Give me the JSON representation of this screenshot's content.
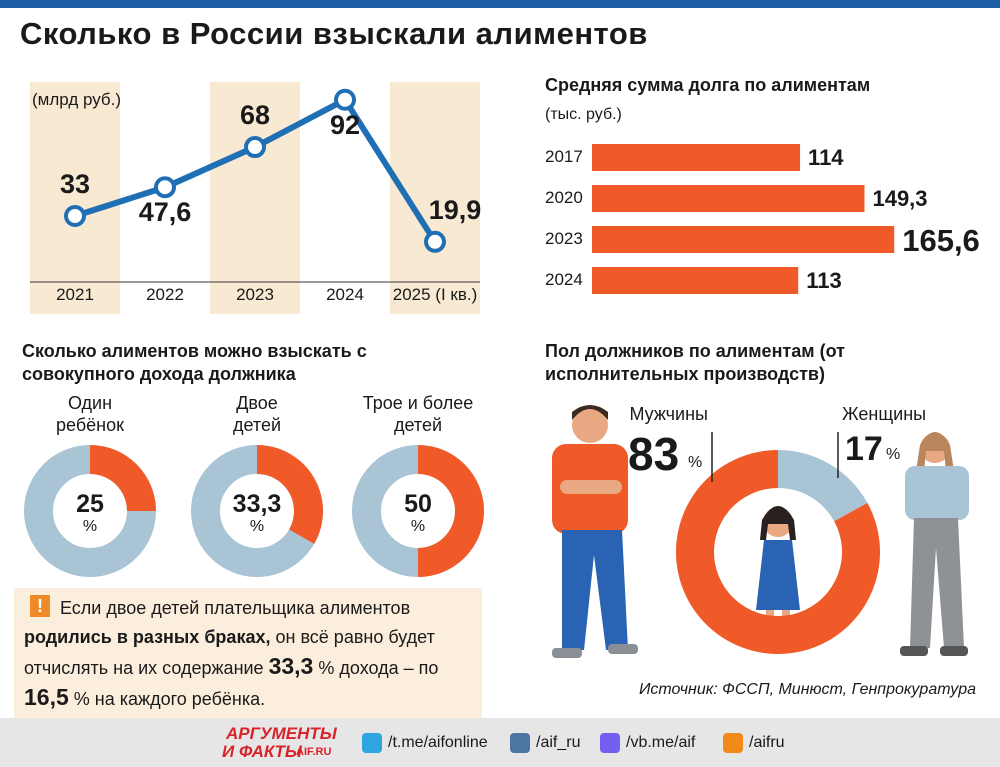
{
  "title": "Сколько в России взыскали алиментов",
  "chart_data": [
    {
      "type": "line",
      "subtitle": "(млрд руб.)",
      "categories": [
        "2021",
        "2022",
        "2023",
        "2024",
        "2025 (I кв.)"
      ],
      "values": [
        33,
        47.6,
        68,
        92,
        19.9
      ],
      "value_labels": [
        "33",
        "47,6",
        "68",
        "92",
        "19,9"
      ],
      "color": "#1f6fb5"
    },
    {
      "type": "bar",
      "title": "Средняя сумма долга по алиментам",
      "subtitle": "(тыс. руб.)",
      "categories": [
        "2017",
        "2020",
        "2023",
        "2024"
      ],
      "values": [
        114,
        149.3,
        165.6,
        113
      ],
      "value_labels": [
        "114",
        "149,3",
        "165,6",
        "113"
      ],
      "color": "#f05a28"
    },
    {
      "type": "donuts",
      "title": "Сколько алиментов можно взыскать с совокупного дохода должника",
      "categories": [
        "Один ребёнок",
        "Двое детей",
        "Трое и более детей"
      ],
      "values": [
        25,
        33.3,
        50
      ],
      "value_labels": [
        "25",
        "33,3",
        "50"
      ],
      "unit": "%",
      "color": "#f05a28",
      "rest_color": "#a9c4d4"
    },
    {
      "type": "pie",
      "title": "Пол должников по алиментам (от исполнительных производств)",
      "categories": [
        "Мужчины",
        "Женщины"
      ],
      "values": [
        83,
        17
      ],
      "unit": "%",
      "colors": [
        "#f05a28",
        "#a9c4d4"
      ],
      "source": "Источник: ФССП, Минюст, Генпрокуратура"
    }
  ],
  "note": {
    "icon": "!",
    "text1": "Если двое детей плательщика алиментов ",
    "bold": "родились в разных браках,",
    "text2": " он всё равно будет отчислять на их содержание ",
    "num1": "33,3",
    "unit1": "%",
    "text3": " дохода – по ",
    "num2": "16,5",
    "unit2": "%",
    "text4": " на каждого ребёнка."
  },
  "footer": {
    "logo_top": "АРГУМЕНТЫ",
    "logo_bottom": "И ФАКТЫ",
    "logo_site": "AIF.RU",
    "links": [
      "/t.me/aifonline",
      "/aif_ru",
      "/vb.me/aif",
      "/aifru"
    ]
  }
}
